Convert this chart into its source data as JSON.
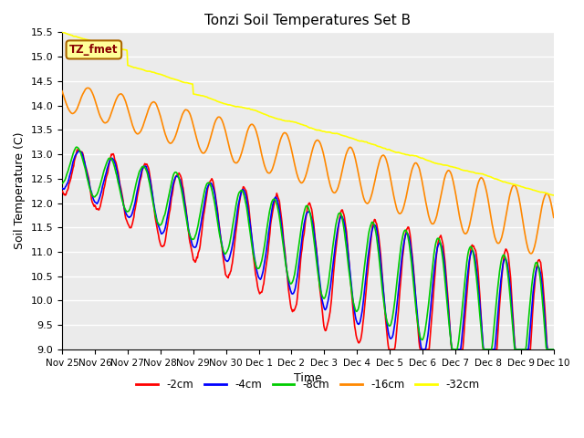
{
  "title": "Tonzi Soil Temperatures Set B",
  "xlabel": "Time",
  "ylabel": "Soil Temperature (C)",
  "ylim": [
    9.0,
    15.5
  ],
  "series_labels": [
    "-2cm",
    "-4cm",
    "-8cm",
    "-16cm",
    "-32cm"
  ],
  "series_colors": [
    "#ff0000",
    "#0000ff",
    "#00cc00",
    "#ff8800",
    "#ffff00"
  ],
  "line_width": 1.2,
  "annotation_text": "TZ_fmet",
  "annotation_bg": "#ffff99",
  "annotation_border": "#cc8800",
  "tick_labels": [
    "Nov 25",
    "Nov 26",
    "Nov 27",
    "Nov 28",
    "Nov 29",
    "Nov 30",
    "Dec 1",
    "Dec 2",
    "Dec 3",
    "Dec 4",
    "Dec 5",
    "Dec 6",
    "Dec 7",
    "Dec 8",
    "Dec 9",
    "Dec 10"
  ],
  "n_points": 720,
  "figsize": [
    6.4,
    4.8
  ],
  "dpi": 100
}
